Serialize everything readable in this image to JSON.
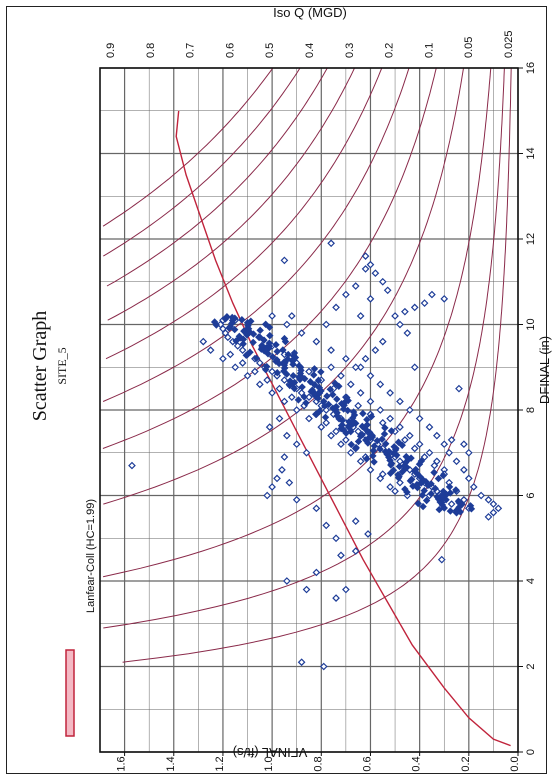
{
  "chart_data": {
    "type": "scatter",
    "title": "Scatter Graph",
    "subtitle": "SITE_5",
    "xlabel": "DFINAL (in)",
    "ylabel": "VFINAL (ft/s)",
    "top_axis_label": "Iso Q (MGD)",
    "xlim": [
      0,
      16
    ],
    "ylim": [
      0,
      1.7
    ],
    "x_ticks": [
      "0",
      "2",
      "4",
      "6",
      "8",
      "10",
      "12",
      "14",
      "16"
    ],
    "y_ticks": [
      "0.0",
      "0.2",
      "0.4",
      "0.6",
      "0.8",
      "1.0",
      "1.2",
      "1.4",
      "1.6"
    ],
    "grid": true,
    "iso_q_values": [
      0.9,
      0.8,
      0.7,
      0.6,
      0.5,
      0.4,
      0.3,
      0.2,
      0.1,
      0.05,
      0.025
    ],
    "iso_q_labels": [
      "0.9",
      "0.8",
      "0.7",
      "0.6",
      "0.5",
      "0.4",
      "0.3",
      "0.2",
      "0.1",
      "0.05",
      "0.025"
    ],
    "legend": {
      "placement": "bottom-left",
      "label": "Lanfear-Coll (HC=1.99)",
      "color": "#c0243c"
    },
    "series": [
      {
        "marker": "open-diamond",
        "color": "#1e3d98",
        "points": [
          [
            5.6,
            0.25
          ],
          [
            5.8,
            0.27
          ],
          [
            5.9,
            0.3
          ],
          [
            6.0,
            0.32
          ],
          [
            6.1,
            0.33
          ],
          [
            6.0,
            0.36
          ],
          [
            6.2,
            0.35
          ],
          [
            6.3,
            0.38
          ],
          [
            6.4,
            0.4
          ],
          [
            6.5,
            0.42
          ],
          [
            6.6,
            0.44
          ],
          [
            6.7,
            0.46
          ],
          [
            6.8,
            0.48
          ],
          [
            6.9,
            0.5
          ],
          [
            7.0,
            0.52
          ],
          [
            7.1,
            0.55
          ],
          [
            7.2,
            0.57
          ],
          [
            7.3,
            0.6
          ],
          [
            7.4,
            0.62
          ],
          [
            7.5,
            0.65
          ],
          [
            7.6,
            0.67
          ],
          [
            7.7,
            0.7
          ],
          [
            7.8,
            0.72
          ],
          [
            7.9,
            0.75
          ],
          [
            8.0,
            0.78
          ],
          [
            8.1,
            0.8
          ],
          [
            8.2,
            0.82
          ],
          [
            8.3,
            0.85
          ],
          [
            8.4,
            0.88
          ],
          [
            8.5,
            0.9
          ],
          [
            8.6,
            0.93
          ],
          [
            8.7,
            0.95
          ],
          [
            8.8,
            0.98
          ],
          [
            8.9,
            1.0
          ],
          [
            9.0,
            1.03
          ],
          [
            9.1,
            1.05
          ],
          [
            9.2,
            1.07
          ],
          [
            9.3,
            1.1
          ],
          [
            9.4,
            1.12
          ],
          [
            9.5,
            1.14
          ],
          [
            9.6,
            1.16
          ],
          [
            9.7,
            1.18
          ],
          [
            9.8,
            1.19
          ],
          [
            9.9,
            1.2
          ],
          [
            10.0,
            1.21
          ],
          [
            10.1,
            1.2
          ],
          [
            5.5,
            0.12
          ],
          [
            5.6,
            0.1
          ],
          [
            5.7,
            0.08
          ],
          [
            5.8,
            0.1
          ],
          [
            5.9,
            0.12
          ],
          [
            6.0,
            0.15
          ],
          [
            6.2,
            0.18
          ],
          [
            6.4,
            0.2
          ],
          [
            6.6,
            0.22
          ],
          [
            6.8,
            0.25
          ],
          [
            7.0,
            0.28
          ],
          [
            7.2,
            0.3
          ],
          [
            7.4,
            0.33
          ],
          [
            7.6,
            0.36
          ],
          [
            7.8,
            0.4
          ],
          [
            8.0,
            0.44
          ],
          [
            8.2,
            0.48
          ],
          [
            8.4,
            0.52
          ],
          [
            8.6,
            0.56
          ],
          [
            8.8,
            0.6
          ],
          [
            9.0,
            0.64
          ],
          [
            9.2,
            0.7
          ],
          [
            9.4,
            0.76
          ],
          [
            9.6,
            0.82
          ],
          [
            9.8,
            0.88
          ],
          [
            10.0,
            0.94
          ],
          [
            10.2,
            1.0
          ],
          [
            6.2,
            0.52
          ],
          [
            6.4,
            0.56
          ],
          [
            6.6,
            0.6
          ],
          [
            6.8,
            0.64
          ],
          [
            7.0,
            0.68
          ],
          [
            7.2,
            0.72
          ],
          [
            7.4,
            0.76
          ],
          [
            7.6,
            0.8
          ],
          [
            7.8,
            0.85
          ],
          [
            8.0,
            0.9
          ],
          [
            8.2,
            0.95
          ],
          [
            8.4,
            1.0
          ],
          [
            8.6,
            1.05
          ],
          [
            8.8,
            1.1
          ],
          [
            9.0,
            1.15
          ],
          [
            9.2,
            1.2
          ],
          [
            9.4,
            1.25
          ],
          [
            9.6,
            1.28
          ],
          [
            6.6,
            0.3
          ],
          [
            6.8,
            0.33
          ],
          [
            7.0,
            0.36
          ],
          [
            7.2,
            0.4
          ],
          [
            7.4,
            0.44
          ],
          [
            7.6,
            0.48
          ],
          [
            7.8,
            0.52
          ],
          [
            8.0,
            0.56
          ],
          [
            8.2,
            0.6
          ],
          [
            8.4,
            0.64
          ],
          [
            8.6,
            0.68
          ],
          [
            8.8,
            0.72
          ],
          [
            9.0,
            0.76
          ],
          [
            5.7,
            0.2
          ],
          [
            5.9,
            0.22
          ],
          [
            6.1,
            0.25
          ],
          [
            6.3,
            0.28
          ],
          [
            6.5,
            0.3
          ],
          [
            6.7,
            0.34
          ],
          [
            6.9,
            0.38
          ],
          [
            7.1,
            0.42
          ],
          [
            7.3,
            0.46
          ],
          [
            7.5,
            0.5
          ],
          [
            7.7,
            0.55
          ],
          [
            7.9,
            0.6
          ],
          [
            8.1,
            0.65
          ],
          [
            8.3,
            0.7
          ],
          [
            8.5,
            0.75
          ],
          [
            8.7,
            0.8
          ],
          [
            8.9,
            0.85
          ],
          [
            9.1,
            0.9
          ],
          [
            9.3,
            0.95
          ],
          [
            9.5,
            1.0
          ],
          [
            9.7,
            1.05
          ],
          [
            9.9,
            1.1
          ],
          [
            10.1,
            1.15
          ],
          [
            6.0,
            0.45
          ],
          [
            6.1,
            0.5
          ],
          [
            6.3,
            0.48
          ],
          [
            6.5,
            0.55
          ],
          [
            6.9,
            0.62
          ],
          [
            7.1,
            0.66
          ],
          [
            7.3,
            0.7
          ],
          [
            7.5,
            0.74
          ],
          [
            7.7,
            0.78
          ],
          [
            7.9,
            0.82
          ],
          [
            8.1,
            0.87
          ],
          [
            8.3,
            0.92
          ],
          [
            8.5,
            0.97
          ],
          [
            8.7,
            1.02
          ],
          [
            8.9,
            1.07
          ],
          [
            9.1,
            1.12
          ],
          [
            9.3,
            1.17
          ],
          [
            11.0,
            0.55
          ],
          [
            11.2,
            0.58
          ],
          [
            11.4,
            0.6
          ],
          [
            11.6,
            0.62
          ],
          [
            11.3,
            0.62
          ],
          [
            10.8,
            0.53
          ],
          [
            10.7,
            0.35
          ],
          [
            10.6,
            0.3
          ],
          [
            10.5,
            0.38
          ],
          [
            10.4,
            0.42
          ],
          [
            10.3,
            0.46
          ],
          [
            10.2,
            0.5
          ],
          [
            10.0,
            0.48
          ],
          [
            9.8,
            0.45
          ],
          [
            9.6,
            0.55
          ],
          [
            9.4,
            0.58
          ],
          [
            9.2,
            0.62
          ],
          [
            9.0,
            0.66
          ],
          [
            9.0,
            0.42
          ],
          [
            8.5,
            0.24
          ],
          [
            7.2,
            0.22
          ],
          [
            7.0,
            0.2
          ],
          [
            7.3,
            0.27
          ],
          [
            10.0,
            0.78
          ],
          [
            10.4,
            0.74
          ],
          [
            10.7,
            0.7
          ],
          [
            10.9,
            0.66
          ],
          [
            10.6,
            0.6
          ],
          [
            10.2,
            0.64
          ],
          [
            11.9,
            0.76
          ],
          [
            11.5,
            0.95
          ],
          [
            10.2,
            0.92
          ],
          [
            8.8,
            0.98
          ],
          [
            8.6,
            0.82
          ],
          [
            7.8,
            0.97
          ],
          [
            7.6,
            1.01
          ],
          [
            7.4,
            0.94
          ],
          [
            7.2,
            0.9
          ],
          [
            7.0,
            0.86
          ],
          [
            6.9,
            0.95
          ],
          [
            6.6,
            0.96
          ],
          [
            6.4,
            0.98
          ],
          [
            6.2,
            1.0
          ],
          [
            6.0,
            1.02
          ],
          [
            6.3,
            0.93
          ],
          [
            5.9,
            0.9
          ],
          [
            5.7,
            0.82
          ],
          [
            5.3,
            0.78
          ],
          [
            5.0,
            0.74
          ],
          [
            4.7,
            0.66
          ],
          [
            5.4,
            0.66
          ],
          [
            5.1,
            0.61
          ],
          [
            4.6,
            0.72
          ],
          [
            4.2,
            0.82
          ],
          [
            4.0,
            0.94
          ],
          [
            3.8,
            0.86
          ],
          [
            3.6,
            0.74
          ],
          [
            3.8,
            0.7
          ],
          [
            2.0,
            0.79
          ],
          [
            2.1,
            0.88
          ],
          [
            6.7,
            1.57
          ],
          [
            4.5,
            0.31
          ]
        ]
      }
    ]
  }
}
